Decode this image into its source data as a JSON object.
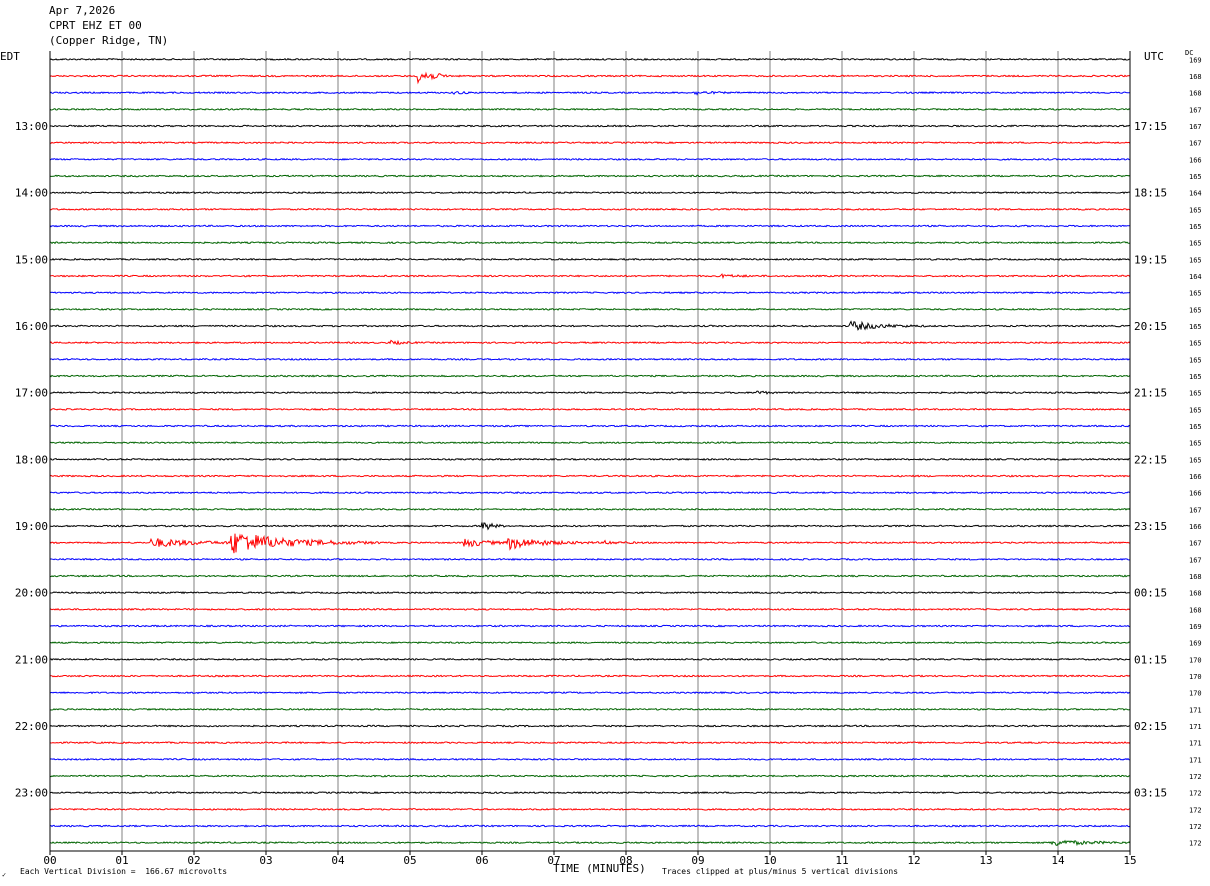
{
  "header": {
    "date": "Apr 7,2026",
    "station": "CPRT EHZ ET 00",
    "location": "(Copper Ridge, TN)"
  },
  "left_axis_label": "EDT",
  "right_axis_label": "UTC",
  "dc_label": "DC",
  "footer": {
    "scale_note": "Each Vertical Division =  166.67 microvolts",
    "xlabel": "TIME (MINUTES)",
    "clip_note": "Traces clipped at plus/minus 5 vertical divisions",
    "corner_mark": "✓"
  },
  "colors": {
    "trace_cycle": [
      "#000000",
      "#ff0000",
      "#0000ff",
      "#006400"
    ],
    "grid": "#808080",
    "frame": "#000000"
  },
  "chart_data": {
    "type": "line",
    "subtype": "helicorder",
    "xlabel": "TIME (MINUTES)",
    "xlim": [
      0,
      15
    ],
    "x_ticks": [
      "00",
      "01",
      "02",
      "03",
      "04",
      "05",
      "06",
      "07",
      "08",
      "09",
      "10",
      "11",
      "12",
      "13",
      "14",
      "15"
    ],
    "rows": 48,
    "minutes_per_row": 15,
    "left_time_labels": [
      "13:00",
      "14:00",
      "15:00",
      "16:00",
      "17:00",
      "18:00",
      "19:00",
      "20:00",
      "21:00",
      "22:00",
      "23:00"
    ],
    "right_time_labels": [
      "17:15",
      "18:15",
      "19:15",
      "20:15",
      "21:15",
      "22:15",
      "23:15",
      "00:15",
      "01:15",
      "02:15",
      "03:15"
    ],
    "first_label_row": 4,
    "label_every_rows": 4,
    "dc_offsets": [
      169,
      168,
      168,
      167,
      167,
      167,
      166,
      165,
      164,
      165,
      165,
      165,
      165,
      164,
      165,
      165,
      165,
      165,
      165,
      165,
      165,
      165,
      165,
      165,
      165,
      166,
      166,
      167,
      166,
      167,
      167,
      168,
      168,
      168,
      169,
      169,
      170,
      170,
      170,
      171,
      171,
      171,
      171,
      172,
      172,
      172,
      172,
      172
    ],
    "events": [
      {
        "row": 1,
        "minute": 5.1,
        "amplitude": 2.6,
        "duration": 0.3
      },
      {
        "row": 2,
        "minute": 5.6,
        "amplitude": 0.4,
        "duration": 0.2
      },
      {
        "row": 2,
        "minute": 8.95,
        "amplitude": 0.5,
        "duration": 0.3
      },
      {
        "row": 13,
        "minute": 9.3,
        "amplitude": 0.4,
        "duration": 0.4
      },
      {
        "row": 16,
        "minute": 11.1,
        "amplitude": 1.2,
        "duration": 0.7
      },
      {
        "row": 17,
        "minute": 4.7,
        "amplitude": 0.5,
        "duration": 0.3
      },
      {
        "row": 20,
        "minute": 9.8,
        "amplitude": 0.6,
        "duration": 0.2
      },
      {
        "row": 28,
        "minute": 6.0,
        "amplitude": 1.5,
        "duration": 0.2
      },
      {
        "row": 29,
        "minute": 1.4,
        "amplitude": 1.2,
        "duration": 1.0
      },
      {
        "row": 29,
        "minute": 2.5,
        "amplitude": 3.0,
        "duration": 1.3
      },
      {
        "row": 29,
        "minute": 5.75,
        "amplitude": 1.2,
        "duration": 0.5
      },
      {
        "row": 29,
        "minute": 6.35,
        "amplitude": 1.6,
        "duration": 0.8
      },
      {
        "row": 29,
        "minute": 7.7,
        "amplitude": 0.4,
        "duration": 0.4
      },
      {
        "row": 47,
        "minute": 13.9,
        "amplitude": 0.8,
        "duration": 0.8
      }
    ]
  }
}
